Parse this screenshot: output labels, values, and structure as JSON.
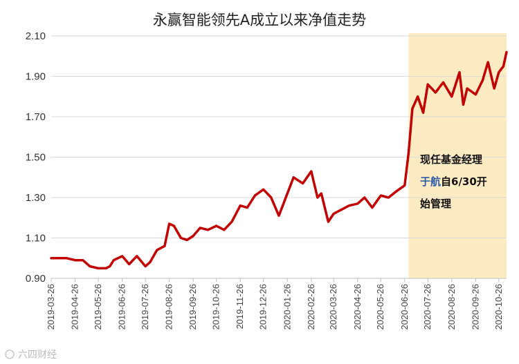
{
  "chart_data": {
    "type": "line",
    "title": "永赢智能领先A成立以来净值走势",
    "xlabel": "",
    "ylabel": "",
    "ylim": [
      0.9,
      2.1
    ],
    "yticks": [
      "2.10",
      "1.90",
      "1.70",
      "1.50",
      "1.30",
      "1.10",
      "0.90"
    ],
    "xticks": [
      "2019-03-26",
      "2019-04-26",
      "2019-05-26",
      "2019-06-26",
      "2019-07-26",
      "2019-08-26",
      "2019-09-26",
      "2019-10-26",
      "2019-11-26",
      "2019-12-26",
      "2020-01-26",
      "2020-02-26",
      "2020-03-26",
      "2020-04-26",
      "2020-05-26",
      "2020-06-26",
      "2020-07-26",
      "2020-08-26",
      "2020-09-26",
      "2020-10-26"
    ],
    "grid": true,
    "x_range": [
      "2019-03-26",
      "2020-11-05"
    ],
    "series": [
      {
        "color": "#c00000",
        "x": [
          "2019-03-26",
          "2019-04-01",
          "2019-04-15",
          "2019-04-26",
          "2019-05-06",
          "2019-05-15",
          "2019-05-26",
          "2019-06-05",
          "2019-06-10",
          "2019-06-15",
          "2019-06-26",
          "2019-07-05",
          "2019-07-15",
          "2019-07-26",
          "2019-08-01",
          "2019-08-10",
          "2019-08-20",
          "2019-08-26",
          "2019-09-01",
          "2019-09-10",
          "2019-09-18",
          "2019-09-26",
          "2019-10-05",
          "2019-10-15",
          "2019-10-26",
          "2019-11-05",
          "2019-11-15",
          "2019-11-26",
          "2019-12-05",
          "2019-12-15",
          "2019-12-26",
          "2020-01-05",
          "2020-01-15",
          "2020-01-26",
          "2020-02-03",
          "2020-02-15",
          "2020-02-26",
          "2020-03-05",
          "2020-03-10",
          "2020-03-19",
          "2020-03-26",
          "2020-04-05",
          "2020-04-15",
          "2020-04-26",
          "2020-05-05",
          "2020-05-15",
          "2020-05-26",
          "2020-06-05",
          "2020-06-15",
          "2020-06-26",
          "2020-07-01",
          "2020-07-06",
          "2020-07-13",
          "2020-07-20",
          "2020-07-26",
          "2020-08-05",
          "2020-08-15",
          "2020-08-26",
          "2020-09-05",
          "2020-09-10",
          "2020-09-15",
          "2020-09-26",
          "2020-10-05",
          "2020-10-12",
          "2020-10-20",
          "2020-10-26",
          "2020-11-01",
          "2020-11-05"
        ],
        "values": [
          1.0,
          1.0,
          1.0,
          0.99,
          0.99,
          0.96,
          0.95,
          0.95,
          0.96,
          0.99,
          1.01,
          0.97,
          1.01,
          0.96,
          0.98,
          1.04,
          1.06,
          1.17,
          1.16,
          1.1,
          1.09,
          1.11,
          1.15,
          1.14,
          1.16,
          1.14,
          1.18,
          1.26,
          1.25,
          1.31,
          1.34,
          1.3,
          1.21,
          1.32,
          1.4,
          1.37,
          1.43,
          1.3,
          1.32,
          1.18,
          1.22,
          1.24,
          1.26,
          1.27,
          1.3,
          1.25,
          1.31,
          1.3,
          1.33,
          1.36,
          1.52,
          1.74,
          1.8,
          1.72,
          1.86,
          1.82,
          1.87,
          1.8,
          1.92,
          1.76,
          1.84,
          1.81,
          1.88,
          1.97,
          1.84,
          1.92,
          1.95,
          2.02
        ]
      }
    ],
    "highlight": {
      "from": "2020-07-01",
      "to": "2020-11-05",
      "color": "#fdebc3"
    },
    "annotation": {
      "line1": "现任基金经理",
      "line2_name": "于航",
      "line2_rest": "自6/30开",
      "line3": "始管理"
    }
  },
  "watermark": "六四财经"
}
